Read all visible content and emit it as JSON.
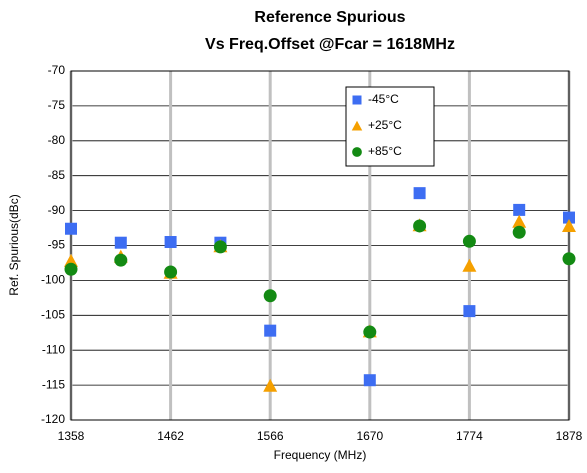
{
  "chart_data": {
    "type": "scatter",
    "title": [
      "Reference Spurious",
      "Vs Freq.Offset @Fcar = 1618MHz"
    ],
    "xlabel": "Frequency (MHz)",
    "ylabel": "Ref. Spurious(dBc)",
    "x": [
      1358,
      1410,
      1462,
      1514,
      1566,
      1670,
      1722,
      1774,
      1826,
      1878
    ],
    "series": [
      {
        "name": "-45°C",
        "color": "#3d6df2",
        "marker": "square",
        "values": [
          -92.6,
          -94.6,
          -94.5,
          -94.6,
          -107.2,
          -114.3,
          -87.5,
          -104.4,
          -89.9,
          -91.0
        ]
      },
      {
        "name": "+25°C",
        "color": "#f5a000",
        "marker": "triangle",
        "values": [
          -97.2,
          -96.6,
          -98.9,
          -95.1,
          -115.1,
          -107.3,
          -92.1,
          -97.9,
          -91.6,
          -92.2
        ]
      },
      {
        "name": "+85°C",
        "color": "#138a13",
        "marker": "circle",
        "values": [
          -98.4,
          -97.1,
          -98.8,
          -95.2,
          -102.2,
          -107.4,
          -92.2,
          -94.4,
          -93.1,
          -96.9
        ]
      }
    ],
    "xlim": [
      1358,
      1878
    ],
    "xticks": [
      1358,
      1462,
      1566,
      1670,
      1774,
      1878
    ],
    "ylim": [
      -120,
      -70
    ],
    "yticks": [
      -120,
      -115,
      -110,
      -105,
      -100,
      -95,
      -90,
      -85,
      -80,
      -75,
      -70
    ],
    "grid": true,
    "legend": "upper center"
  }
}
